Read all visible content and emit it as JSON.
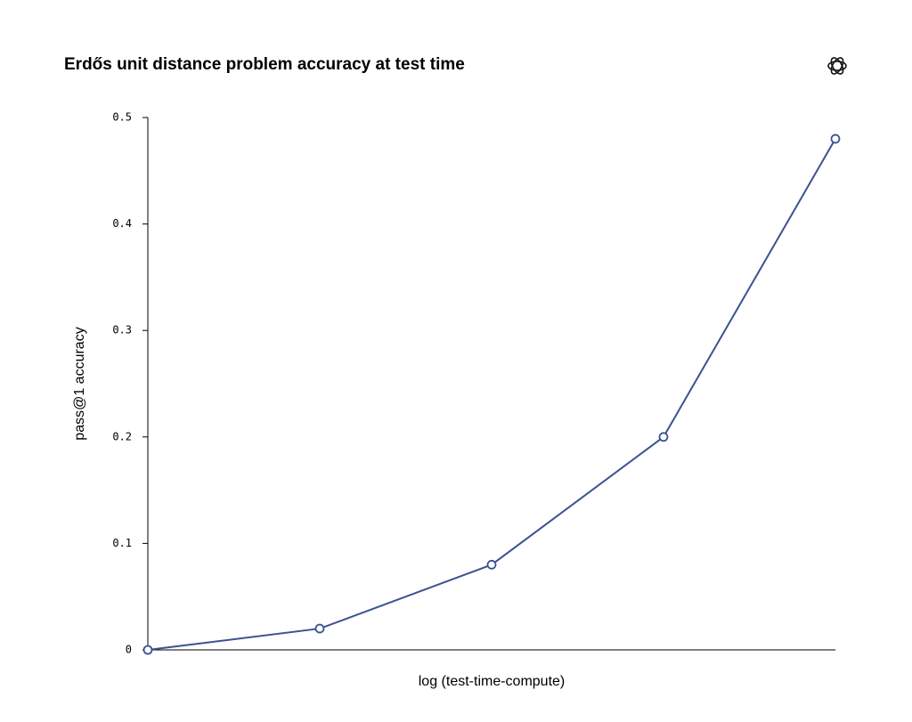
{
  "chart_data": {
    "type": "line",
    "title": "Erdős unit distance problem accuracy at test time",
    "x_label": "log (test-time-compute)",
    "y_label": "pass@1 accuracy",
    "categories": [
      null,
      null,
      null,
      null,
      null
    ],
    "values": [
      0,
      0.02,
      0.08,
      0.2,
      0.48
    ],
    "color": "#3b5290",
    "ylim": [
      0,
      0.5
    ],
    "yticks": [
      0,
      0.1,
      0.2,
      0.3,
      0.4,
      0.5
    ],
    "grid": false
  }
}
